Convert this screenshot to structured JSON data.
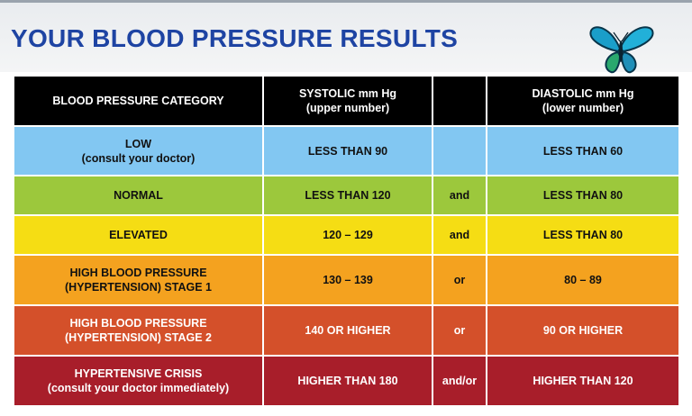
{
  "title": "YOUR BLOOD PRESSURE RESULTS",
  "logo": {
    "icon": "butterfly-icon"
  },
  "chart_data": {
    "type": "table",
    "columns": [
      {
        "lines": [
          "BLOOD PRESSURE CATEGORY"
        ]
      },
      {
        "lines": [
          "SYSTOLIC mm Hg",
          "(upper number)"
        ]
      },
      {
        "lines": []
      },
      {
        "lines": [
          "DIASTOLIC mm Hg",
          "(lower number)"
        ]
      }
    ],
    "rows": [
      {
        "category": [
          "LOW",
          "(consult your doctor)"
        ],
        "systolic": "LESS THAN 90",
        "connector": "",
        "diastolic": "LESS THAN 60",
        "color": "#82c7f2",
        "text_color": "#111111"
      },
      {
        "category": [
          "NORMAL"
        ],
        "systolic": "LESS THAN 120",
        "connector": "and",
        "diastolic": "LESS THAN 80",
        "color": "#9cc83c",
        "text_color": "#111111"
      },
      {
        "category": [
          "ELEVATED"
        ],
        "systolic": "120 – 129",
        "connector": "and",
        "diastolic": "LESS THAN 80",
        "color": "#f5dd14",
        "text_color": "#111111"
      },
      {
        "category": [
          "HIGH BLOOD PRESSURE",
          "(HYPERTENSION) STAGE 1"
        ],
        "systolic": "130 – 139",
        "connector": "or",
        "diastolic": "80 – 89",
        "color": "#f4a21f",
        "text_color": "#111111"
      },
      {
        "category": [
          "HIGH BLOOD PRESSURE",
          "(HYPERTENSION) STAGE 2"
        ],
        "systolic": "140 OR HIGHER",
        "connector": "or",
        "diastolic": "90 OR HIGHER",
        "color": "#d4502a",
        "text_color": "#ffffff"
      },
      {
        "category": [
          "HYPERTENSIVE CRISIS",
          "(consult your doctor immediately)"
        ],
        "systolic": "HIGHER THAN 180",
        "connector": "and/or",
        "diastolic": "HIGHER THAN 120",
        "color": "#a81e2a",
        "text_color": "#ffffff"
      }
    ]
  }
}
